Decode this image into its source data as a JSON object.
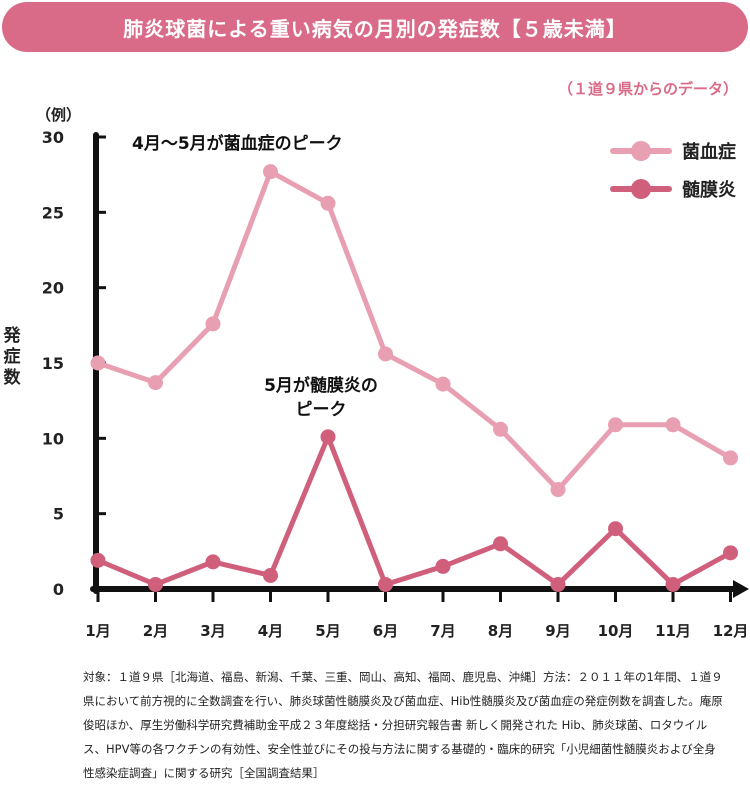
{
  "title": "肺炎球菌による重い病気の月別の発症数【５歳未満】",
  "source_note": "（１道９県からのデータ）",
  "colors": {
    "banner": "#d96b88",
    "accent_text": "#d96b88",
    "series_light": "#e89fb2",
    "series_dark": "#cf5f7b",
    "axis": "#111111"
  },
  "annotations": [
    {
      "text": "4月〜5月が菌血症のピーク"
    },
    {
      "text_line1": "5月が髄膜炎の",
      "text_line2": "ピーク"
    }
  ],
  "chart_data": {
    "type": "line",
    "unit_label": "（例）",
    "ylabel": "発症数",
    "xlabel": "",
    "categories": [
      "1月",
      "2月",
      "3月",
      "4月",
      "5月",
      "6月",
      "7月",
      "8月",
      "9月",
      "10月",
      "11月",
      "12月"
    ],
    "yticks": [
      0,
      5,
      10,
      15,
      20,
      25,
      30
    ],
    "ylim": [
      0,
      30
    ],
    "grid": false,
    "legend_position": "top-right",
    "series": [
      {
        "name": "菌血症",
        "color": "#e89fb2",
        "values": [
          15,
          13.7,
          17.6,
          27.7,
          25.6,
          15.6,
          13.6,
          10.6,
          6.6,
          10.9,
          10.9,
          8.7
        ]
      },
      {
        "name": "髄膜炎",
        "color": "#cf5f7b",
        "values": [
          1.9,
          0.3,
          1.8,
          0.9,
          10.1,
          0.3,
          1.5,
          3.0,
          0.3,
          4.0,
          0.3,
          2.4
        ]
      }
    ]
  },
  "footnote": "対象：１道９県［北海道、福島、新潟、千葉、三重、岡山、高知、福岡、鹿児島、沖縄］方法：２０１１年の1年間、１道９県において前方視的に全数調査を行い、肺炎球菌性髄膜炎及び菌血症、Hib性髄膜炎及び菌血症の発症例数を調査した。庵原 俊昭ほか、厚生労働科学研究費補助金平成２３年度総括・分担研究報告書 新しく開発された Hib、肺炎球菌、ロタウイルス、HPV等の各ワクチンの有効性、安全性並びにその投与方法に関する基礎的・臨床的研究「小児細菌性髄膜炎および全身性感染症調査」に関する研究［全国調査結果］"
}
